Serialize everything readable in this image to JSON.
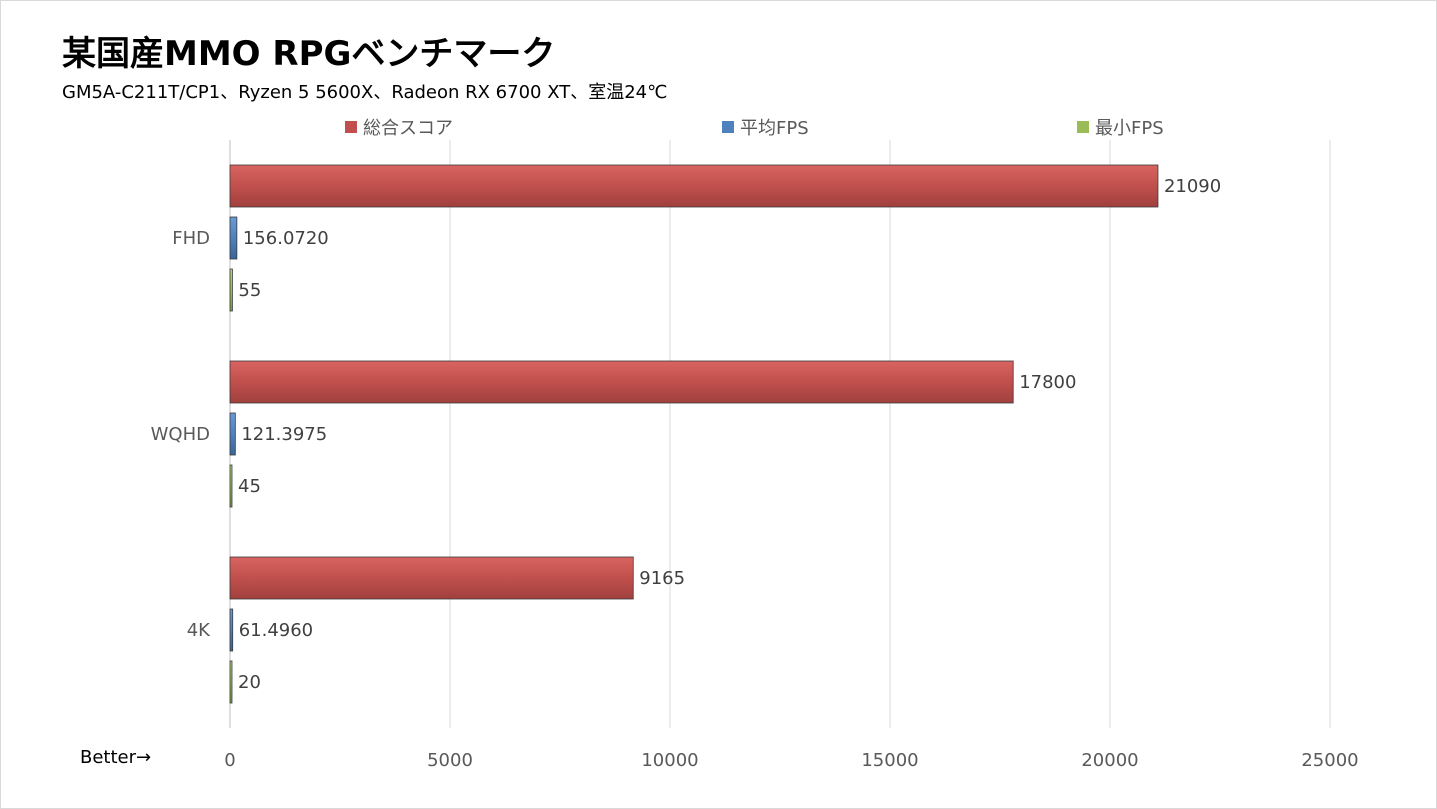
{
  "chart_data": {
    "type": "bar",
    "orientation": "horizontal",
    "title": "某国産MMO RPGベンチマーク",
    "subtitle": "GM5A-C211T/CP1、Ryzen 5 5600X、Radeon RX 6700 XT、室温24℃",
    "categories": [
      "FHD",
      "WQHD",
      "4K"
    ],
    "series": [
      {
        "name": "総合スコア",
        "color": "#c0504d",
        "values": [
          21090,
          17800,
          9165
        ],
        "labels": [
          "21090",
          "17800",
          "9165"
        ]
      },
      {
        "name": "平均FPS",
        "color": "#4f81bd",
        "values": [
          156.072,
          121.3975,
          61.496
        ],
        "labels": [
          "156.0720",
          "121.3975",
          "61.4960"
        ]
      },
      {
        "name": "最小FPS",
        "color": "#9bbb59",
        "values": [
          55,
          45,
          20
        ],
        "labels": [
          "55",
          "45",
          "20"
        ]
      }
    ],
    "xlim": [
      0,
      25000
    ],
    "xticks": [
      0,
      5000,
      10000,
      15000,
      20000,
      25000
    ],
    "grid": true,
    "legend_position": "top",
    "annotation": "Better→"
  }
}
